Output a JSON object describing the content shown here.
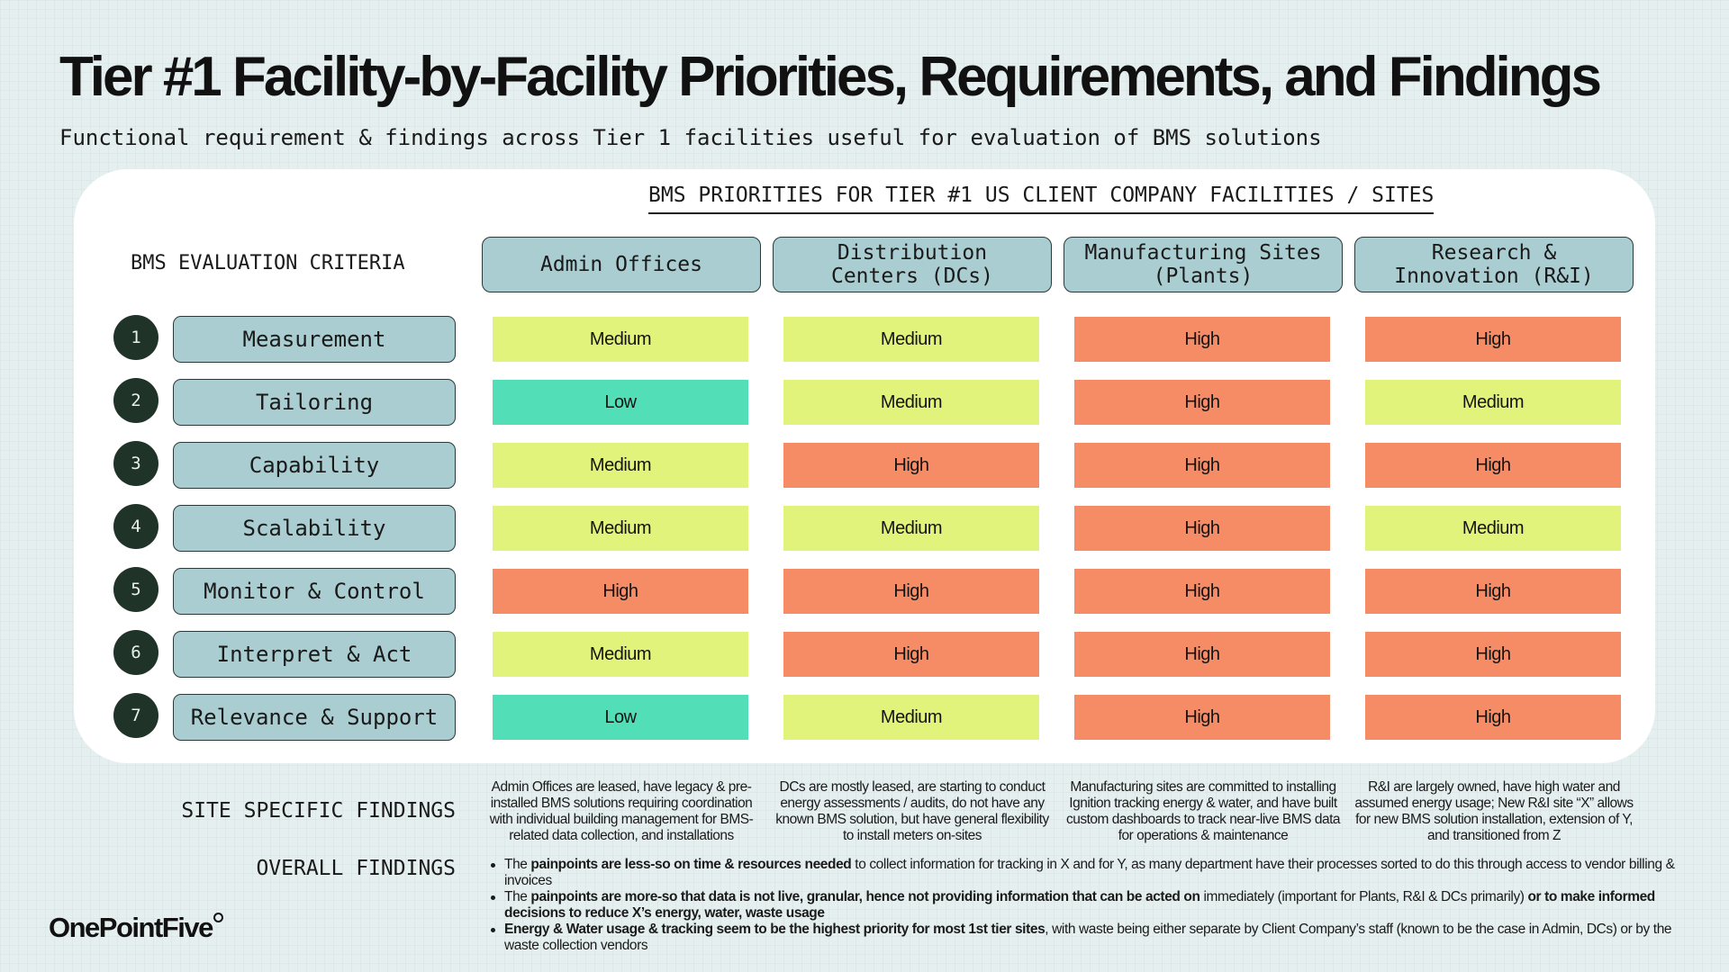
{
  "title": "Tier #1 Facility-by-Facility Priorities, Requirements, and Findings",
  "subtitle": "Functional requirement & findings across Tier 1 facilities useful for evaluation of BMS solutions",
  "columns_title": "BMS PRIORITIES FOR TIER #1 US CLIENT COMPANY FACILITIES / SITES",
  "criteria_title": "BMS EVALUATION CRITERIA",
  "columns": [
    "Admin Offices",
    "Distribution\nCenters (DCs)",
    "Manufacturing Sites\n(Plants)",
    "Research &\nInnovation (R&I)"
  ],
  "rows": [
    {
      "num": "1",
      "label": "Measurement",
      "values": [
        "Medium",
        "Medium",
        "High",
        "High"
      ]
    },
    {
      "num": "2",
      "label": "Tailoring",
      "values": [
        "Low",
        "Medium",
        "High",
        "Medium"
      ]
    },
    {
      "num": "3",
      "label": "Capability",
      "values": [
        "Medium",
        "High",
        "High",
        "High"
      ]
    },
    {
      "num": "4",
      "label": "Scalability",
      "values": [
        "Medium",
        "Medium",
        "High",
        "Medium"
      ]
    },
    {
      "num": "5",
      "label": "Monitor & Control",
      "values": [
        "High",
        "High",
        "High",
        "High"
      ]
    },
    {
      "num": "6",
      "label": "Interpret & Act",
      "values": [
        "Medium",
        "High",
        "High",
        "High"
      ]
    },
    {
      "num": "7",
      "label": "Relevance & Support",
      "values": [
        "Low",
        "Medium",
        "High",
        "High"
      ]
    }
  ],
  "level_colors": {
    "Low": "#52dfb7",
    "Medium": "#e1f37b",
    "High": "#f68c66"
  },
  "site_findings_label": "SITE SPECIFIC FINDINGS",
  "site_findings": [
    "Admin Offices are leased, have legacy & pre-installed BMS solutions requiring coordination with individual building management for BMS-related data collection, and installations",
    "DCs are mostly leased, are starting to conduct energy assessments / audits, do not have any known BMS solution, but have general flexibility to install meters on-sites",
    "Manufacturing sites are committed to installing Ignition tracking energy & water, and have built custom dashboards to track near-live BMS data for operations & maintenance",
    "R&I are largely owned, have high water and assumed energy usage; New R&I site “X” allows for new BMS solution installation, extension of Y, and transitioned from Z"
  ],
  "overall_label": "OVERALL FINDINGS",
  "overall": [
    [
      {
        "t": "The ",
        "b": false
      },
      {
        "t": "painpoints are less-so on time & resources needed",
        "b": true
      },
      {
        "t": " to collect information for tracking in X and for Y, as many department have their processes sorted to do this through access to vendor billing & invoices",
        "b": false
      }
    ],
    [
      {
        "t": "The ",
        "b": false
      },
      {
        "t": "painpoints are more-so that data is not live, granular, hence not providing information that can be acted on",
        "b": true
      },
      {
        "t": " immediately (important for Plants, R&I & DCs primarily) ",
        "b": false
      },
      {
        "t": "or to make informed decisions to reduce X’s energy, water, waste usage",
        "b": true
      }
    ],
    [
      {
        "t": "Energy & Water usage & tracking seem to be the highest priority for most 1st tier sites",
        "b": true
      },
      {
        "t": ", with waste being either separate by Client Company’s staff (known to be the case in Admin, DCs) or by the waste collection vendors",
        "b": false
      }
    ]
  ],
  "logo": "OnePointFive"
}
